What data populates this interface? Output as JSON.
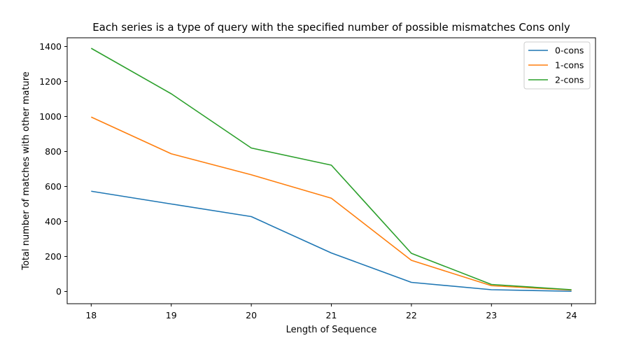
{
  "chart_data": {
    "type": "line",
    "title": "Each series is a type of query with the specified number of possible mismatches Cons only",
    "xlabel": "Length of Sequence",
    "ylabel": "Total number of matches with other mature",
    "x": [
      18,
      19,
      20,
      21,
      22,
      23,
      24
    ],
    "xlim": [
      17.7,
      24.3
    ],
    "ylim": [
      -70,
      1450
    ],
    "xticks": [
      "18",
      "19",
      "20",
      "21",
      "22",
      "23",
      "24"
    ],
    "yticks": [
      "0",
      "200",
      "400",
      "600",
      "800",
      "1000",
      "1200",
      "1400"
    ],
    "grid": false,
    "legend_position": "top-right",
    "series": [
      {
        "name": "0-cons",
        "color": "#1f77b4",
        "values": [
          573,
          500,
          428,
          220,
          52,
          10,
          1
        ]
      },
      {
        "name": "1-cons",
        "color": "#ff7f0e",
        "values": [
          997,
          787,
          667,
          533,
          178,
          33,
          8
        ]
      },
      {
        "name": "2-cons",
        "color": "#2ca02c",
        "values": [
          1390,
          1130,
          820,
          722,
          218,
          40,
          10
        ]
      }
    ]
  }
}
